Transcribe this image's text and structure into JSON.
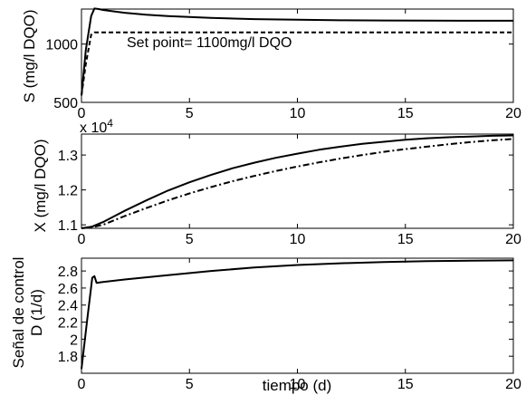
{
  "chart_data": [
    {
      "type": "line",
      "ylabel": "S (mg/l DQO)",
      "xlabel": "",
      "xlim": [
        0,
        20
      ],
      "ylim": [
        500,
        1300
      ],
      "xticks": [
        "0",
        "5",
        "10",
        "15",
        "20"
      ],
      "yticks": [
        "500",
        "1000"
      ],
      "ytick_values": [
        500,
        1000
      ],
      "grid": false,
      "annotation": "Set point= 1100mg/l DQO",
      "series": [
        {
          "style": "solid",
          "x": [
            0,
            0.2,
            0.45,
            0.6,
            0.8,
            1,
            2,
            3,
            4,
            5,
            6,
            8,
            10,
            12,
            14,
            16,
            18,
            20
          ],
          "y": [
            560,
            950,
            1240,
            1305,
            1300,
            1292,
            1268,
            1252,
            1240,
            1232,
            1225,
            1214,
            1208,
            1204,
            1202,
            1201,
            1200,
            1200
          ]
        },
        {
          "style": "dashed",
          "x": [
            0,
            0.2,
            0.45,
            0.6,
            1,
            2,
            5,
            10,
            15,
            20
          ],
          "y": [
            560,
            830,
            1080,
            1100,
            1100,
            1100,
            1100,
            1100,
            1100,
            1100
          ]
        }
      ]
    },
    {
      "type": "line",
      "ylabel": "X (mg/l DQO)",
      "xlabel": "",
      "y_exponent": "x 10^4",
      "y_exponent_base": "x 10",
      "y_exponent_power": "4",
      "xlim": [
        0,
        20
      ],
      "ylim": [
        1.09,
        1.36
      ],
      "xticks": [
        "0",
        "5",
        "10",
        "15",
        "20"
      ],
      "yticks": [
        "1.1",
        "1.2",
        "1.3"
      ],
      "ytick_values": [
        1.1,
        1.2,
        1.3
      ],
      "grid": false,
      "series": [
        {
          "style": "solid",
          "x": [
            0,
            0.5,
            1,
            2,
            3,
            4,
            5,
            6,
            7,
            8,
            9,
            10,
            11,
            12,
            13,
            14,
            15,
            16,
            17,
            18,
            19,
            20
          ],
          "y": [
            1.09,
            1.095,
            1.108,
            1.14,
            1.17,
            1.198,
            1.222,
            1.243,
            1.262,
            1.278,
            1.292,
            1.304,
            1.315,
            1.324,
            1.332,
            1.338,
            1.344,
            1.348,
            1.351,
            1.353,
            1.355,
            1.356
          ]
        },
        {
          "style": "dashdot",
          "x": [
            0,
            0.5,
            1,
            2,
            3,
            4,
            5,
            6,
            7,
            8,
            9,
            10,
            11,
            12,
            13,
            14,
            15,
            16,
            17,
            18,
            19,
            20
          ],
          "y": [
            1.09,
            1.093,
            1.1,
            1.125,
            1.148,
            1.17,
            1.19,
            1.208,
            1.225,
            1.24,
            1.254,
            1.267,
            1.279,
            1.29,
            1.3,
            1.309,
            1.317,
            1.324,
            1.331,
            1.337,
            1.342,
            1.346
          ]
        }
      ]
    },
    {
      "type": "line",
      "ylabel_lines": [
        "Señal de control",
        "D (1/d)"
      ],
      "xlabel": "tiempo (d)",
      "xlim": [
        0,
        20
      ],
      "ylim": [
        1.6,
        2.95
      ],
      "xticks": [
        "0",
        "5",
        "10",
        "15",
        "20"
      ],
      "yticks": [
        "1.8",
        "2",
        "2.2",
        "2.4",
        "2.6",
        "2.8"
      ],
      "ytick_values": [
        1.8,
        2.0,
        2.2,
        2.4,
        2.6,
        2.8
      ],
      "grid": false,
      "series": [
        {
          "style": "solid",
          "x": [
            0,
            0.25,
            0.5,
            0.6,
            0.7,
            1,
            2,
            4,
            6,
            8,
            10,
            12,
            14,
            16,
            18,
            20
          ],
          "y": [
            1.65,
            2.2,
            2.72,
            2.74,
            2.66,
            2.67,
            2.7,
            2.75,
            2.8,
            2.84,
            2.87,
            2.89,
            2.905,
            2.915,
            2.92,
            2.925
          ]
        }
      ]
    }
  ]
}
